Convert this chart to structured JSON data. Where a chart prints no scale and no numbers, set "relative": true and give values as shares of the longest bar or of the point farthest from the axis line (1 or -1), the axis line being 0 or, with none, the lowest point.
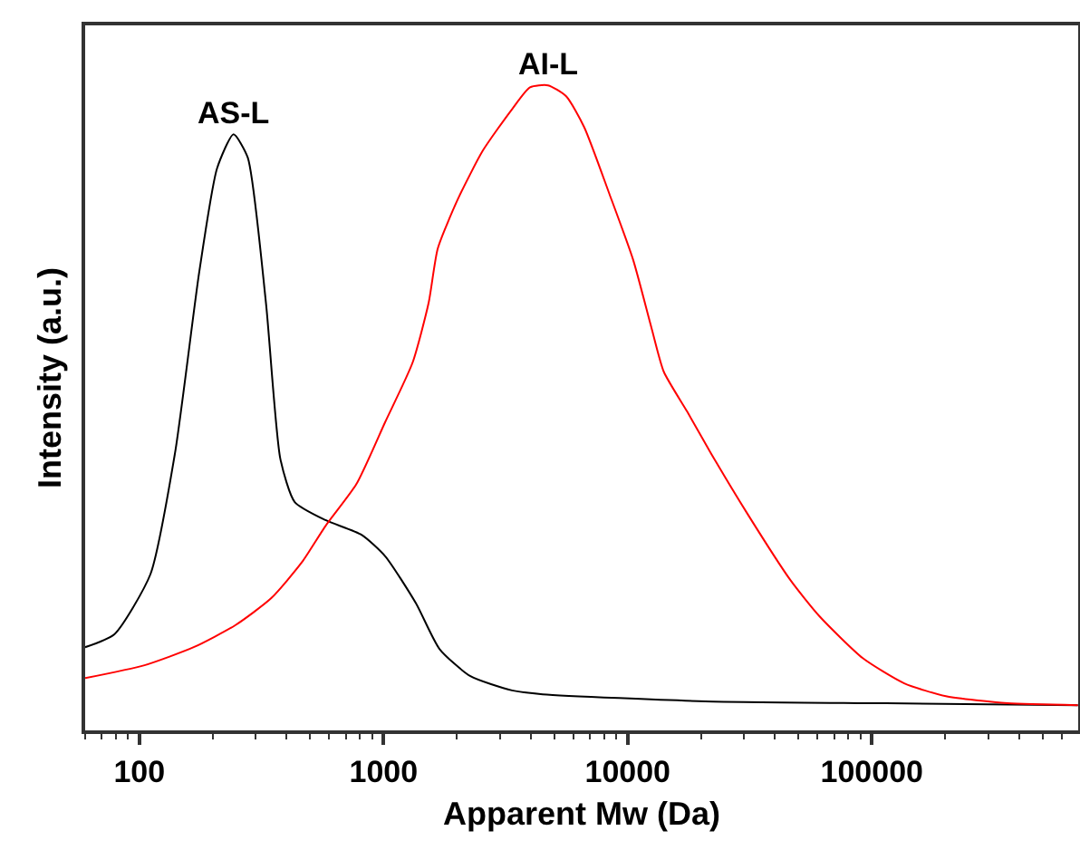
{
  "chart_data": {
    "type": "line",
    "relative": true,
    "log": "x",
    "xlabel": "Apparent Mw (Da)",
    "ylabel": "Intensity (a.u.)",
    "xlim": [
      60,
      700000
    ],
    "xticks": [
      {
        "value": 60,
        "label": null
      },
      {
        "value": 70,
        "label": null
      },
      {
        "value": 80,
        "label": null
      },
      {
        "value": 90,
        "label": null
      },
      100,
      {
        "value": 200,
        "label": null
      },
      {
        "value": 300,
        "label": null
      },
      {
        "value": 400,
        "label": null
      },
      {
        "value": 500,
        "label": null
      },
      {
        "value": 600,
        "label": null
      },
      {
        "value": 700,
        "label": null
      },
      {
        "value": 800,
        "label": null
      },
      {
        "value": 900,
        "label": null
      },
      1000,
      {
        "value": 2000,
        "label": null
      },
      {
        "value": 3000,
        "label": null
      },
      {
        "value": 4000,
        "label": null
      },
      {
        "value": 5000,
        "label": null
      },
      {
        "value": 6000,
        "label": null
      },
      {
        "value": 7000,
        "label": null
      },
      {
        "value": 8000,
        "label": null
      },
      {
        "value": 9000,
        "label": null
      },
      10000,
      {
        "value": 20000,
        "label": null
      },
      {
        "value": 30000,
        "label": null
      },
      {
        "value": 40000,
        "label": null
      },
      {
        "value": 50000,
        "label": null
      },
      {
        "value": 60000,
        "label": null
      },
      {
        "value": 70000,
        "label": null
      },
      {
        "value": 80000,
        "label": null
      },
      {
        "value": 90000,
        "label": null
      },
      100000,
      {
        "value": 200000,
        "label": null
      },
      {
        "value": 300000,
        "label": null
      },
      {
        "value": 400000,
        "label": null
      },
      {
        "value": 500000,
        "label": null
      },
      {
        "value": 600000,
        "label": null
      }
    ],
    "grid": false,
    "marker": "none",
    "line_style": "solid",
    "annotations": [
      {
        "text": "AS-L",
        "x": 243,
        "y": 0.924
      },
      {
        "text": "AI-L",
        "x": 4720,
        "y": 1
      }
    ],
    "series": [
      {
        "color": "#000000",
        "x": [
          60,
          79,
          111,
          140,
          176,
          208,
          243,
          278,
          330,
          378,
          433,
          579,
          815,
          1016,
          1358,
          1697,
          2270,
          3360,
          4490,
          20800,
          114600,
          698000
        ],
        "values": [
          0.129,
          0.149,
          0.242,
          0.43,
          0.711,
          0.871,
          0.924,
          0.888,
          0.663,
          0.421,
          0.354,
          0.326,
          0.303,
          0.27,
          0.197,
          0.126,
          0.084,
          0.062,
          0.056,
          0.045,
          0.042,
          0.039
        ]
      },
      {
        "color": "#ff0000",
        "x": [
          60,
          105,
          167,
          247,
          347,
          464,
          579,
          775,
          1016,
          1315,
          1531,
          1668,
          2013,
          2553,
          3360,
          3981,
          4720,
          5600,
          6640,
          8430,
          10520,
          12480,
          14060,
          17540,
          21900,
          30800,
          46400,
          61000,
          91800,
          135800,
          201000,
          360000,
          698000
        ],
        "values": [
          0.081,
          0.101,
          0.129,
          0.163,
          0.205,
          0.261,
          0.317,
          0.382,
          0.478,
          0.57,
          0.663,
          0.747,
          0.823,
          0.899,
          0.963,
          0.997,
          1,
          0.983,
          0.935,
          0.831,
          0.73,
          0.626,
          0.556,
          0.494,
          0.43,
          0.337,
          0.233,
          0.177,
          0.112,
          0.073,
          0.053,
          0.042,
          0.039
        ]
      }
    ]
  }
}
